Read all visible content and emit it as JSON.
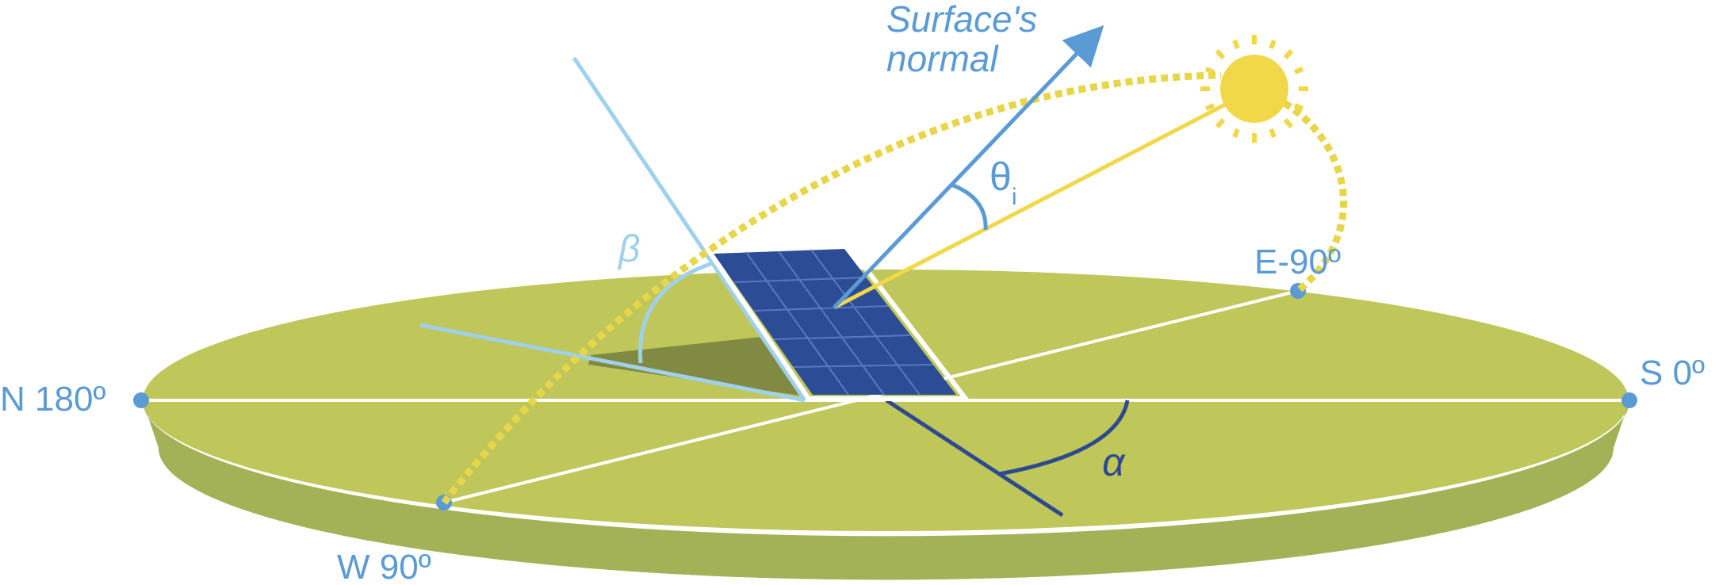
{
  "labels": {
    "north": "N 180º",
    "south": "S 0º",
    "east": "E-90º",
    "west": "W 90º",
    "normal_line1": "Surface's",
    "normal_line2": "normal",
    "theta": "θ",
    "theta_sub": "i",
    "beta": "β",
    "alpha": "α"
  },
  "colors": {
    "ground_top": "#bfc65a",
    "ground_side": "#a3b257",
    "ground_shadow": "#818a43",
    "panel": "#2d4c96",
    "panel_grid": "#5a78c0",
    "sun": "#f0d848",
    "sun_path": "#e8d64a",
    "normal": "#5b9bd5",
    "light_blue": "#9fd1ea",
    "dark_blue": "#2e4a8f",
    "compass_dot": "#5b9bd5",
    "text": "#5b9bd5"
  }
}
